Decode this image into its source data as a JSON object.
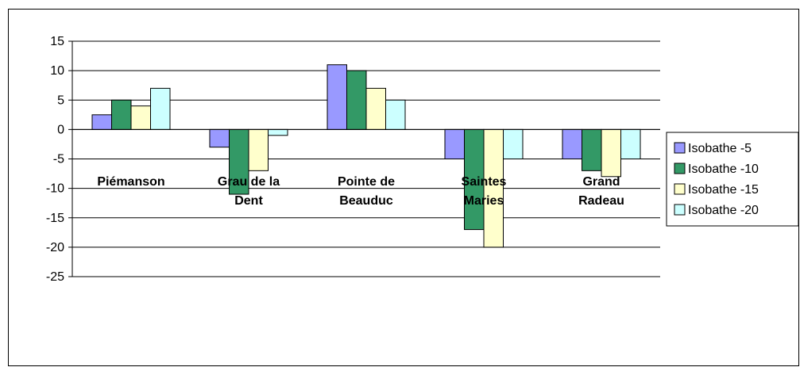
{
  "chart_data": {
    "type": "bar",
    "categories": [
      [
        "Piémanson"
      ],
      [
        "Grau de la",
        "Dent"
      ],
      [
        "Pointe de",
        "Beauduc"
      ],
      [
        "Saintes",
        "Maries"
      ],
      [
        "Grand",
        "Radeau"
      ]
    ],
    "series": [
      {
        "name": "Isobathe -5",
        "values": [
          2.5,
          -3,
          11,
          -5,
          -5
        ]
      },
      {
        "name": "Isobathe -10",
        "values": [
          5,
          -11,
          10,
          -17,
          -7
        ]
      },
      {
        "name": "Isobathe -15",
        "values": [
          4,
          -7,
          7,
          -20,
          -8
        ]
      },
      {
        "name": "Isobathe -20",
        "values": [
          7,
          -1,
          5,
          -5,
          -5
        ]
      }
    ],
    "yticks": [
      "15",
      "10",
      "5",
      "0",
      "-5",
      "-10",
      "-15",
      "-20",
      "-25"
    ],
    "ylim": [
      -25,
      15
    ],
    "ystep": 5,
    "grid": true,
    "legend_position": "right",
    "colors": [
      "#9999ff",
      "#339966",
      "#ffffcc",
      "#ccffff"
    ],
    "stroke": "#000000"
  }
}
